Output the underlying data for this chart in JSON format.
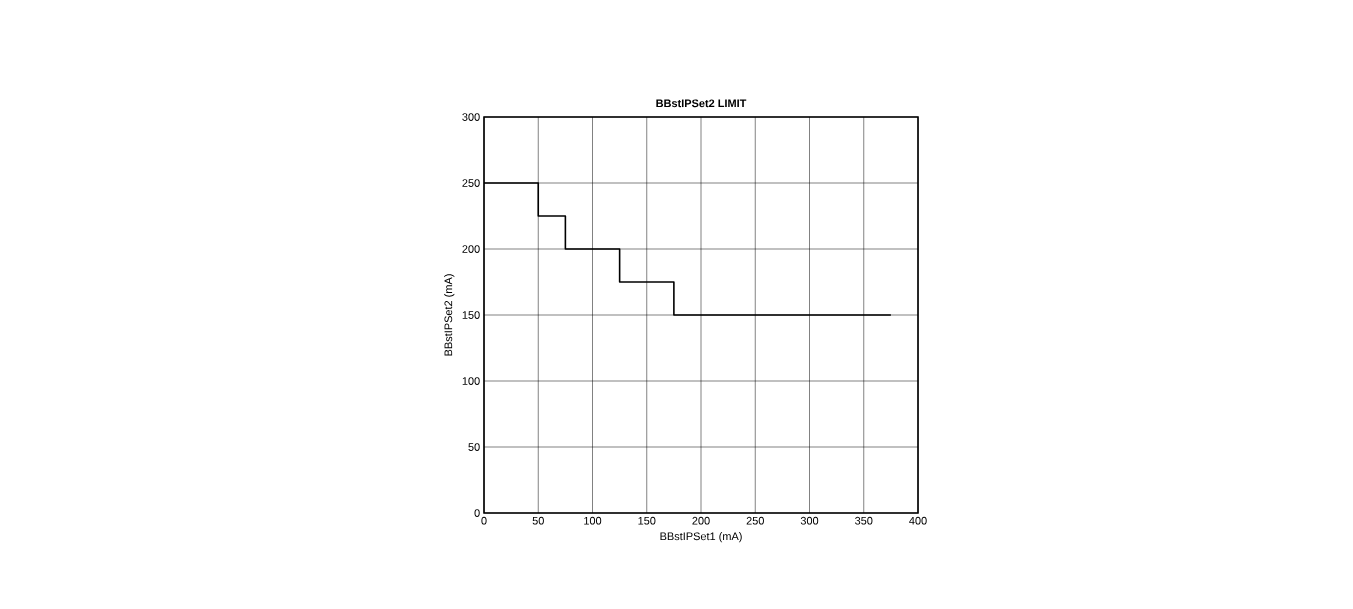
{
  "chart_data": {
    "type": "step",
    "title": "BBstIPSet2 LIMIT",
    "xlabel": "BBstIPSet1 (mA)",
    "ylabel": "BBstIPSet2 (mA)",
    "x": [
      0,
      50,
      75,
      125,
      175,
      375
    ],
    "series": [
      {
        "color": "#000000",
        "values": [
          250,
          225,
          200,
          175,
          150,
          150
        ]
      }
    ],
    "xlim": [
      0,
      400
    ],
    "ylim": [
      0,
      300
    ],
    "xticks": [
      0,
      50,
      100,
      150,
      200,
      250,
      300,
      350,
      400
    ],
    "yticks": [
      0,
      50,
      100,
      150,
      200,
      250,
      300
    ],
    "grid": true
  }
}
